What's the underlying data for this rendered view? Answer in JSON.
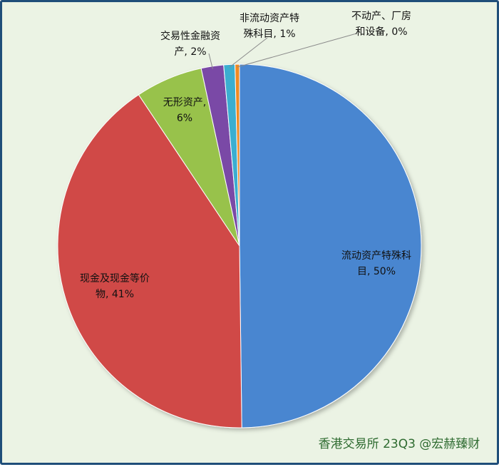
{
  "chart_data": {
    "type": "pie",
    "title": "",
    "slices": [
      {
        "category": "流动资产特殊科目",
        "value": 50,
        "label_lines": [
          "流动资产特殊科",
          "目, 50%"
        ],
        "color": "#4a86d0"
      },
      {
        "category": "现金及现金等价物",
        "value": 41,
        "label_lines": [
          "现金及现金等价",
          "物, 41%"
        ],
        "color": "#d04a46"
      },
      {
        "category": "无形资产",
        "value": 6,
        "label_lines": [
          "无形资产,",
          "6%"
        ],
        "color": "#98c24b"
      },
      {
        "category": "交易性金融资产",
        "value": 2,
        "label_lines": [
          "交易性金融资",
          "产, 2%"
        ],
        "color": "#7a4aa6"
      },
      {
        "category": "非流动资产特殊科目",
        "value": 1,
        "label_lines": [
          "非流动资产特",
          "殊科目, 1%"
        ],
        "color": "#3aaed0"
      },
      {
        "category": "不动产、厂房和设备",
        "value": 0.4,
        "label_lines": [
          "不动产、厂房",
          "和设备, 0%"
        ],
        "color": "#f08a24"
      }
    ],
    "legend": "none",
    "source_note": "香港交易所 23Q3 @宏赫臻财"
  }
}
